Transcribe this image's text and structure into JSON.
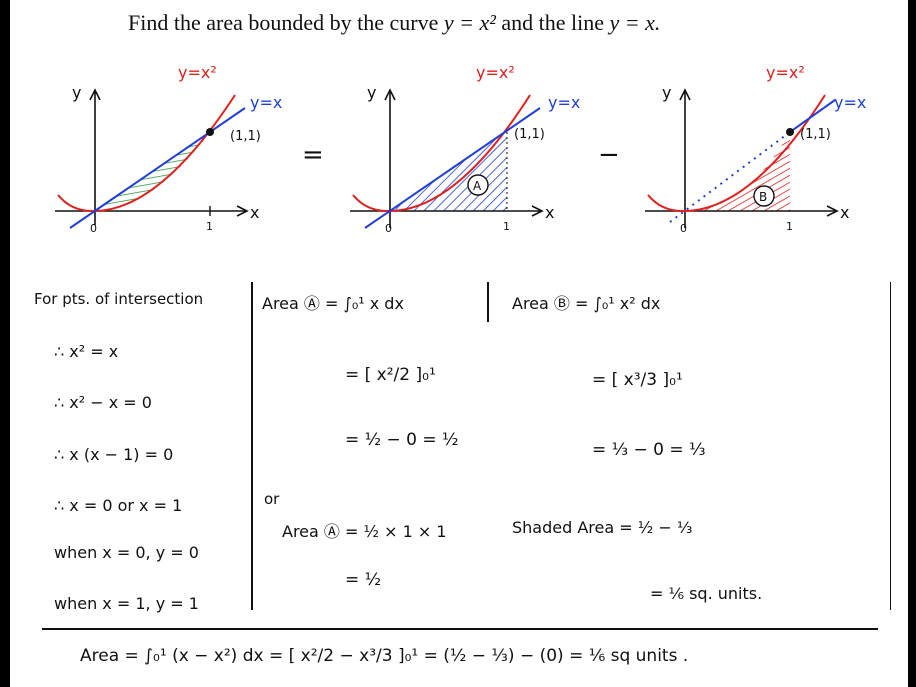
{
  "title": {
    "prefix": "Find the area bounded by the curve ",
    "curve": "y = x²",
    "middle": " and the line ",
    "line": "y = x."
  },
  "graphs": {
    "y_label": "y",
    "x_label": "x",
    "origin": "0",
    "one": "1",
    "curve_label": "y=x²",
    "line_label": "y=x",
    "point_label": "(1,1)",
    "region_a": "A",
    "region_b": "B",
    "equals_sign": "=",
    "minus_sign": "−"
  },
  "col1": {
    "heading": "For pts. of intersection",
    "line1": "∴ x² = x",
    "line2": "∴ x² − x = 0",
    "line3": "∴ x (x − 1) = 0",
    "line4": "∴ x = 0  or  x = 1",
    "line5": "when x = 0, y = 0",
    "line6": "when x = 1, y = 1"
  },
  "col2": {
    "heading": "Area Ⓐ = ∫₀¹ x dx",
    "step1": "= [ x²/2 ]₀¹",
    "step2": "= ½ − 0 = ½",
    "or_label": "or",
    "alt1": "Area Ⓐ = ½ × 1 × 1",
    "alt2": "= ½"
  },
  "col3": {
    "heading": "Area Ⓑ = ∫₀¹ x² dx",
    "step1": "= [ x³/3 ]₀¹",
    "step2": "= ⅓ − 0 = ⅓",
    "shaded1": "Shaded Area = ½ − ⅓",
    "shaded2": "= ⅙ sq. units."
  },
  "footer": {
    "text": "Area = ∫₀¹ (x − x²) dx = [ x²/2 − x³/3 ]₀¹ = (½ − ⅓) − (0) = ⅙ sq units ."
  },
  "colors": {
    "curve": "#e0201e",
    "line": "#1f3fd6",
    "hatch_green": "#2e9a3e",
    "hatch_blue": "#1f3fd6",
    "hatch_red": "#e0201e"
  }
}
